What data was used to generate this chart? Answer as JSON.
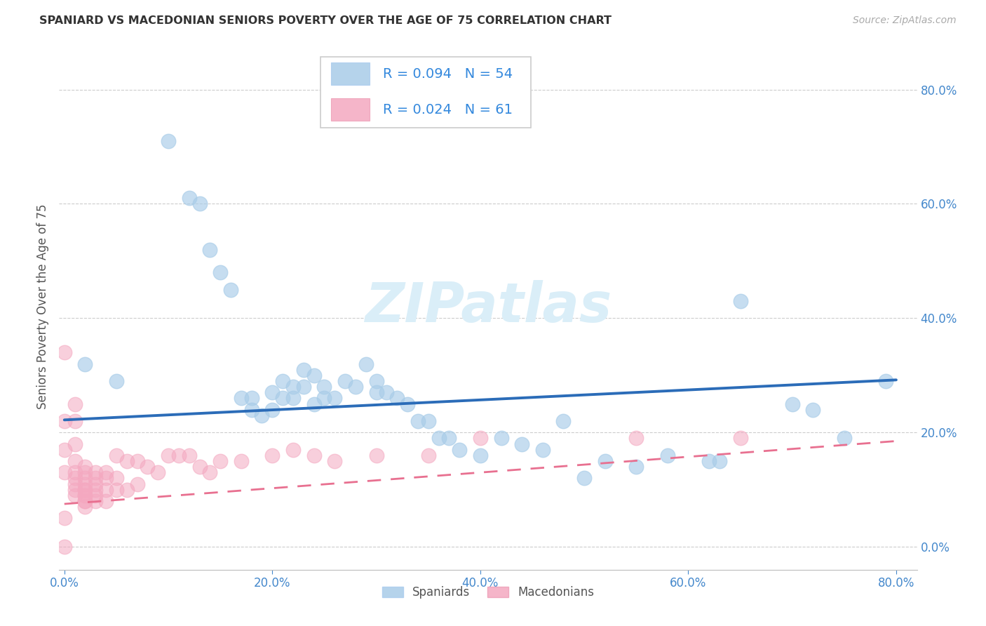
{
  "title": "SPANIARD VS MACEDONIAN SENIORS POVERTY OVER THE AGE OF 75 CORRELATION CHART",
  "source": "Source: ZipAtlas.com",
  "ylabel": "Seniors Poverty Over the Age of 75",
  "spaniards_R": 0.094,
  "spaniards_N": 54,
  "macedonians_R": 0.024,
  "macedonians_N": 61,
  "spaniard_color": "#a8cce8",
  "macedonian_color": "#f4a8c0",
  "spaniard_line_color": "#2b6cb8",
  "macedonian_line_color": "#e87090",
  "watermark_color": "#daeef8",
  "spaniards_x": [
    0.02,
    0.05,
    0.1,
    0.12,
    0.13,
    0.14,
    0.15,
    0.16,
    0.17,
    0.18,
    0.18,
    0.19,
    0.2,
    0.2,
    0.21,
    0.21,
    0.22,
    0.22,
    0.23,
    0.23,
    0.24,
    0.24,
    0.25,
    0.25,
    0.26,
    0.27,
    0.28,
    0.29,
    0.3,
    0.3,
    0.31,
    0.32,
    0.33,
    0.34,
    0.35,
    0.36,
    0.37,
    0.38,
    0.4,
    0.42,
    0.44,
    0.46,
    0.48,
    0.5,
    0.52,
    0.55,
    0.58,
    0.62,
    0.63,
    0.65,
    0.7,
    0.72,
    0.75,
    0.79
  ],
  "spaniards_y": [
    0.32,
    0.29,
    0.71,
    0.61,
    0.6,
    0.52,
    0.48,
    0.45,
    0.26,
    0.26,
    0.24,
    0.23,
    0.27,
    0.24,
    0.29,
    0.26,
    0.28,
    0.26,
    0.31,
    0.28,
    0.3,
    0.25,
    0.28,
    0.26,
    0.26,
    0.29,
    0.28,
    0.32,
    0.29,
    0.27,
    0.27,
    0.26,
    0.25,
    0.22,
    0.22,
    0.19,
    0.19,
    0.17,
    0.16,
    0.19,
    0.18,
    0.17,
    0.22,
    0.12,
    0.15,
    0.14,
    0.16,
    0.15,
    0.15,
    0.43,
    0.25,
    0.24,
    0.19,
    0.29
  ],
  "macedonians_x": [
    0.0,
    0.0,
    0.0,
    0.0,
    0.0,
    0.01,
    0.01,
    0.01,
    0.01,
    0.01,
    0.01,
    0.01,
    0.01,
    0.01,
    0.02,
    0.02,
    0.02,
    0.02,
    0.02,
    0.02,
    0.02,
    0.02,
    0.02,
    0.02,
    0.02,
    0.03,
    0.03,
    0.03,
    0.03,
    0.03,
    0.03,
    0.04,
    0.04,
    0.04,
    0.04,
    0.05,
    0.05,
    0.05,
    0.06,
    0.06,
    0.07,
    0.07,
    0.08,
    0.09,
    0.1,
    0.11,
    0.12,
    0.13,
    0.14,
    0.15,
    0.17,
    0.2,
    0.22,
    0.24,
    0.26,
    0.3,
    0.35,
    0.4,
    0.55,
    0.65,
    0.0
  ],
  "macedonians_y": [
    0.34,
    0.22,
    0.17,
    0.13,
    0.05,
    0.25,
    0.22,
    0.18,
    0.15,
    0.13,
    0.12,
    0.11,
    0.1,
    0.09,
    0.14,
    0.13,
    0.12,
    0.11,
    0.1,
    0.1,
    0.09,
    0.09,
    0.08,
    0.08,
    0.07,
    0.13,
    0.12,
    0.11,
    0.1,
    0.09,
    0.08,
    0.13,
    0.12,
    0.1,
    0.08,
    0.16,
    0.12,
    0.1,
    0.15,
    0.1,
    0.15,
    0.11,
    0.14,
    0.13,
    0.16,
    0.16,
    0.16,
    0.14,
    0.13,
    0.15,
    0.15,
    0.16,
    0.17,
    0.16,
    0.15,
    0.16,
    0.16,
    0.19,
    0.19,
    0.19,
    0.0
  ],
  "xlim": [
    -0.005,
    0.82
  ],
  "ylim": [
    -0.04,
    0.88
  ],
  "x_ticks": [
    0.0,
    0.2,
    0.4,
    0.6,
    0.8
  ],
  "y_ticks": [
    0.0,
    0.2,
    0.4,
    0.6,
    0.8
  ]
}
